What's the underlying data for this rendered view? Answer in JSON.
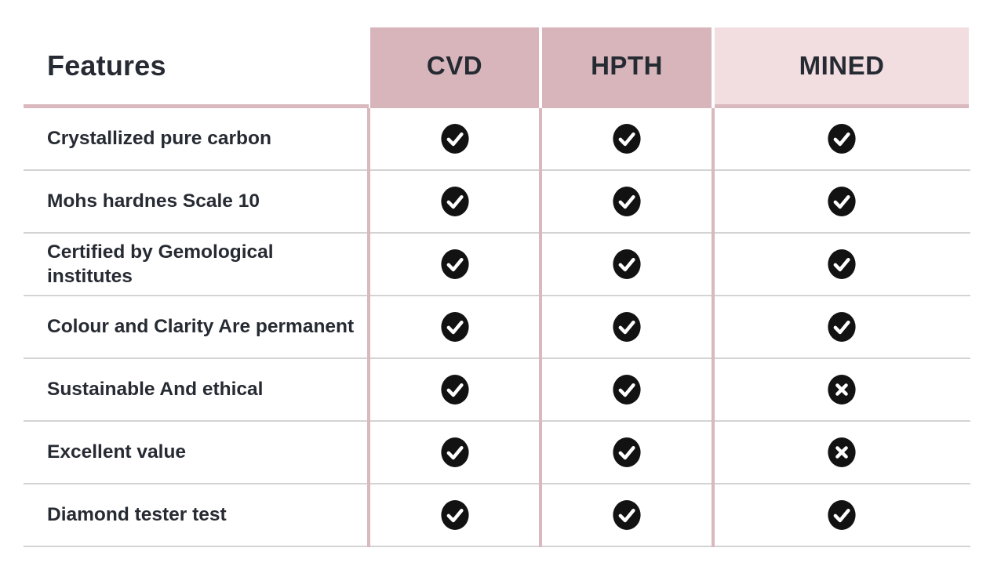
{
  "colors": {
    "header_pink_dark": "#d7b5ba",
    "header_pink_light": "#f2dee1",
    "pink_divider": "#d9b8be",
    "gray_divider": "#d3d3d3",
    "text_dark": "#262a32",
    "icon_fill": "#121212",
    "icon_glyph": "#ffffff"
  },
  "table": {
    "feature_header": "Features",
    "columns": [
      {
        "label": "CVD",
        "header_style": "dark"
      },
      {
        "label": "HPTH",
        "header_style": "dark"
      },
      {
        "label": "MINED",
        "header_style": "light"
      }
    ],
    "rows": [
      {
        "feature": "Crystallized pure carbon",
        "values": [
          "check",
          "check",
          "check"
        ]
      },
      {
        "feature": "Mohs hardnes Scale 10",
        "values": [
          "check",
          "check",
          "check"
        ]
      },
      {
        "feature": "Certified by Gemological institutes",
        "values": [
          "check",
          "check",
          "check"
        ]
      },
      {
        "feature": "Colour and Clarity Are permanent",
        "values": [
          "check",
          "check",
          "check"
        ]
      },
      {
        "feature": "Sustainable And ethical",
        "values": [
          "check",
          "check",
          "cross"
        ]
      },
      {
        "feature": "Excellent value",
        "values": [
          "check",
          "check",
          "cross"
        ]
      },
      {
        "feature": "Diamond tester test",
        "values": [
          "check",
          "check",
          "check"
        ]
      }
    ],
    "icons": {
      "check": "check-icon",
      "cross": "cross-icon"
    }
  },
  "chart_data": {
    "type": "table",
    "title": "Features comparison: CVD vs HPTH vs MINED diamonds",
    "columns": [
      "Features",
      "CVD",
      "HPTH",
      "MINED"
    ],
    "rows": [
      [
        "Crystallized pure carbon",
        true,
        true,
        true
      ],
      [
        "Mohs hardnes Scale 10",
        true,
        true,
        true
      ],
      [
        "Certified by Gemological institutes",
        true,
        true,
        true
      ],
      [
        "Colour and Clarity Are permanent",
        true,
        true,
        true
      ],
      [
        "Sustainable And ethical",
        true,
        true,
        false
      ],
      [
        "Excellent value",
        true,
        true,
        false
      ],
      [
        "Diamond tester test",
        true,
        true,
        true
      ]
    ],
    "cell_encoding": "true = black circle with white checkmark, false = black circle with white cross"
  }
}
